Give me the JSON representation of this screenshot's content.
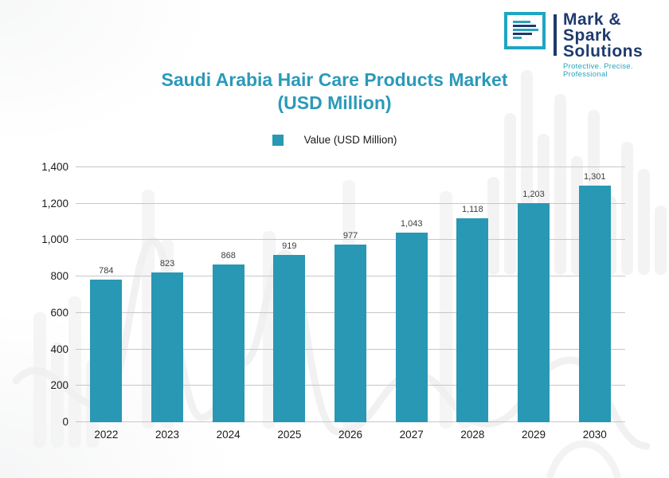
{
  "brand": {
    "name_line1": "Mark & Spark",
    "name_line2": "Solutions",
    "tagline": "Protective. Precise. Professional",
    "icon": "document-lines-icon",
    "navy_color": "#1e3a6d",
    "teal_color": "#2aa3bd"
  },
  "chart_data": {
    "type": "bar",
    "title": "Saudi Arabia Hair Care Products Market",
    "subtitle": "(USD Million)",
    "legend": [
      {
        "label": "Value (USD Million)",
        "color": "#2898b4"
      }
    ],
    "legend_position": "top-center",
    "categories": [
      "2022",
      "2023",
      "2024",
      "2025",
      "2026",
      "2027",
      "2028",
      "2029",
      "2030"
    ],
    "values": [
      784,
      823,
      868,
      919,
      977,
      1043,
      1118,
      1203,
      1301
    ],
    "value_labels": [
      "784",
      "823",
      "868",
      "919",
      "977",
      "1,043",
      "1,118",
      "1,203",
      "1,301"
    ],
    "xlabel": "",
    "ylabel": "",
    "ylim": [
      0,
      1400
    ],
    "ytick_labels": [
      "0",
      "200",
      "400",
      "600",
      "800",
      "1,000",
      "1,200",
      "1,400"
    ],
    "grid": true,
    "bar_color": "#2898b4"
  }
}
